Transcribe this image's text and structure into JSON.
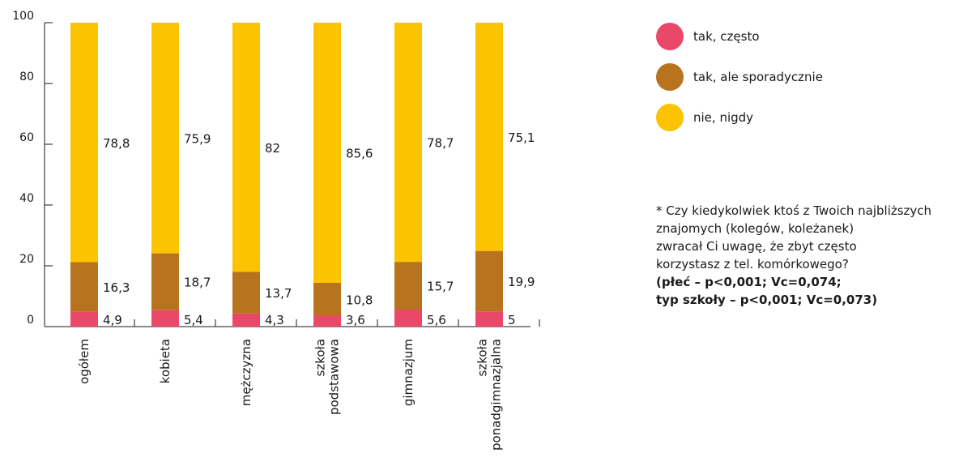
{
  "chart_data": {
    "type": "bar",
    "stacked": true,
    "categories": [
      [
        "ogółem"
      ],
      [
        "kobieta"
      ],
      [
        "mężczyzna"
      ],
      [
        "szkoła",
        "podstawowa"
      ],
      [
        "gimnazjum"
      ],
      [
        "szkoła",
        "ponadgimnazjalna"
      ]
    ],
    "series": [
      {
        "name": "tak, często",
        "color": "#e94868",
        "values": [
          4.9,
          5.4,
          4.3,
          3.6,
          5.6,
          5
        ],
        "labels": [
          "4,9",
          "5,4",
          "4,3",
          "3,6",
          "5,6",
          "5"
        ]
      },
      {
        "name": "tak, ale sporadycznie",
        "color": "#b8731e",
        "values": [
          16.3,
          18.7,
          13.7,
          10.8,
          15.7,
          19.9
        ],
        "labels": [
          "16,3",
          "18,7",
          "13,7",
          "10,8",
          "15,7",
          "19,9"
        ]
      },
      {
        "name": "nie, nigdy",
        "color": "#fcc400",
        "values": [
          78.8,
          75.9,
          82,
          85.6,
          78.7,
          75.1
        ],
        "labels": [
          "78,8",
          "75,9",
          "82",
          "85,6",
          "78,7",
          "75,1"
        ]
      }
    ],
    "ylim": [
      0,
      100
    ],
    "yticks": [
      0,
      20,
      40,
      60,
      80,
      100
    ],
    "legend_position": "right"
  },
  "note": {
    "lines": [
      "* Czy kiedykolwiek ktoś z Twoich najbliższych",
      "znajomych (kolegów, koleżanek)",
      "zwracał Ci uwagę, że zbyt często",
      "korzystasz z tel. komórkowego?"
    ],
    "bold_lines": [
      "(płeć – p<0,001; Vc=0,074;",
      "typ szkoły – p<0,001; Vc=0,073)"
    ]
  }
}
